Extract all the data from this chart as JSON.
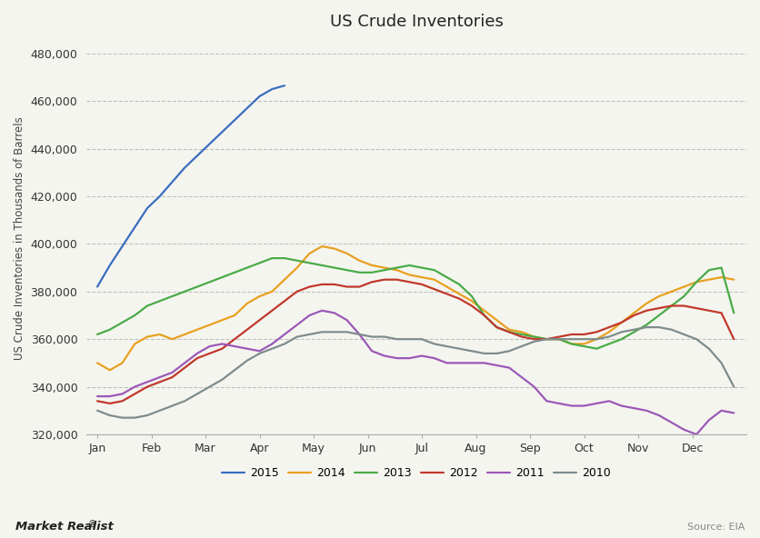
{
  "title": "US Crude Inventories",
  "ylabel": "US Crude Inventories in Thousands of Barrels",
  "source_text": "Source: EIA",
  "watermark": "Market Realist",
  "ylim": [
    320000,
    485000
  ],
  "yticks": [
    320000,
    340000,
    360000,
    380000,
    400000,
    420000,
    440000,
    460000,
    480000
  ],
  "months": [
    "Jan",
    "Feb",
    "Mar",
    "Apr",
    "May",
    "Jun",
    "Jul",
    "Aug",
    "Sep",
    "Oct",
    "Nov",
    "Dec"
  ],
  "series": {
    "2015": {
      "color": "#3a6dbf",
      "x": [
        1,
        2,
        3,
        4,
        5,
        6,
        7,
        8,
        9,
        10,
        11,
        12,
        13,
        14,
        15,
        16
      ],
      "y": [
        382000,
        391000,
        399000,
        407000,
        415000,
        420000,
        426000,
        432000,
        437000,
        442000,
        447000,
        452000,
        457000,
        462000,
        465000,
        466500
      ]
    },
    "2014": {
      "color": "#e8a020",
      "x": [
        1,
        2,
        3,
        4,
        5,
        6,
        7,
        8,
        9,
        10,
        11,
        12,
        13,
        14,
        15,
        16,
        17,
        18,
        19,
        20,
        21,
        22,
        23,
        24,
        25,
        26,
        27,
        28,
        29,
        30,
        31,
        32,
        33,
        34,
        35,
        36,
        37,
        38,
        39,
        40,
        41,
        42,
        43,
        44,
        45,
        46,
        47,
        48,
        49,
        50,
        51,
        52
      ],
      "y": [
        350000,
        347000,
        350000,
        358000,
        361000,
        362000,
        360000,
        362000,
        364000,
        366000,
        368000,
        370000,
        375000,
        378000,
        380000,
        385000,
        390000,
        396000,
        399000,
        398000,
        396000,
        393000,
        391000,
        390000,
        389000,
        387000,
        386000,
        385000,
        382000,
        379000,
        376000,
        372000,
        368000,
        364000,
        363000,
        361000,
        360000,
        360000,
        358000,
        358000,
        360000,
        363000,
        367000,
        371000,
        375000,
        378000,
        380000,
        382000,
        384000,
        385000,
        386000,
        385000
      ]
    },
    "2013": {
      "color": "#4aab48",
      "x": [
        1,
        2,
        3,
        4,
        5,
        6,
        7,
        8,
        9,
        10,
        11,
        12,
        13,
        14,
        15,
        16,
        17,
        18,
        19,
        20,
        21,
        22,
        23,
        24,
        25,
        26,
        27,
        28,
        29,
        30,
        31,
        32,
        33,
        34,
        35,
        36,
        37,
        38,
        39,
        40,
        41,
        42,
        43,
        44,
        45,
        46,
        47,
        48,
        49,
        50,
        51,
        52
      ],
      "y": [
        362000,
        364000,
        367000,
        370000,
        374000,
        376000,
        378000,
        380000,
        382000,
        384000,
        386000,
        388000,
        390000,
        392000,
        394000,
        394000,
        393000,
        392000,
        391000,
        390000,
        389000,
        388000,
        388000,
        389000,
        390000,
        391000,
        390000,
        389000,
        386000,
        383000,
        378000,
        370000,
        365000,
        363000,
        362000,
        361000,
        360000,
        360000,
        358000,
        357000,
        356000,
        358000,
        360000,
        363000,
        366000,
        370000,
        374000,
        378000,
        384000,
        389000,
        390000,
        371000
      ]
    },
    "2012": {
      "color": "#c0392b",
      "x": [
        1,
        2,
        3,
        4,
        5,
        6,
        7,
        8,
        9,
        10,
        11,
        12,
        13,
        14,
        15,
        16,
        17,
        18,
        19,
        20,
        21,
        22,
        23,
        24,
        25,
        26,
        27,
        28,
        29,
        30,
        31,
        32,
        33,
        34,
        35,
        36,
        37,
        38,
        39,
        40,
        41,
        42,
        43,
        44,
        45,
        46,
        47,
        48,
        49,
        50,
        51,
        52
      ],
      "y": [
        334000,
        333000,
        334000,
        337000,
        340000,
        342000,
        344000,
        348000,
        352000,
        354000,
        356000,
        360000,
        364000,
        368000,
        372000,
        376000,
        380000,
        382000,
        383000,
        383000,
        382000,
        382000,
        384000,
        385000,
        385000,
        384000,
        383000,
        381000,
        379000,
        377000,
        374000,
        370000,
        365000,
        363000,
        361000,
        360000,
        360000,
        361000,
        362000,
        362000,
        363000,
        365000,
        367000,
        370000,
        372000,
        373000,
        374000,
        374000,
        373000,
        372000,
        371000,
        360000
      ]
    },
    "2011": {
      "color": "#9b59b6",
      "x": [
        1,
        2,
        3,
        4,
        5,
        6,
        7,
        8,
        9,
        10,
        11,
        12,
        13,
        14,
        15,
        16,
        17,
        18,
        19,
        20,
        21,
        22,
        23,
        24,
        25,
        26,
        27,
        28,
        29,
        30,
        31,
        32,
        33,
        34,
        35,
        36,
        37,
        38,
        39,
        40,
        41,
        42,
        43,
        44,
        45,
        46,
        47,
        48,
        49,
        50,
        51,
        52
      ],
      "y": [
        336000,
        336000,
        337000,
        340000,
        342000,
        344000,
        346000,
        350000,
        354000,
        357000,
        358000,
        357000,
        356000,
        355000,
        358000,
        362000,
        366000,
        370000,
        372000,
        371000,
        368000,
        362000,
        355000,
        353000,
        352000,
        352000,
        353000,
        352000,
        350000,
        350000,
        350000,
        350000,
        349000,
        348000,
        344000,
        340000,
        334000,
        333000,
        332000,
        332000,
        333000,
        334000,
        332000,
        331000,
        330000,
        328000,
        325000,
        322000,
        320000,
        326000,
        330000,
        329000
      ]
    },
    "2010": {
      "color": "#7f8c8d",
      "x": [
        1,
        2,
        3,
        4,
        5,
        6,
        7,
        8,
        9,
        10,
        11,
        12,
        13,
        14,
        15,
        16,
        17,
        18,
        19,
        20,
        21,
        22,
        23,
        24,
        25,
        26,
        27,
        28,
        29,
        30,
        31,
        32,
        33,
        34,
        35,
        36,
        37,
        38,
        39,
        40,
        41,
        42,
        43,
        44,
        45,
        46,
        47,
        48,
        49,
        50,
        51,
        52
      ],
      "y": [
        330000,
        328000,
        327000,
        327000,
        328000,
        330000,
        332000,
        334000,
        337000,
        340000,
        343000,
        347000,
        351000,
        354000,
        356000,
        358000,
        361000,
        362000,
        363000,
        363000,
        363000,
        362000,
        361000,
        361000,
        360000,
        360000,
        360000,
        358000,
        357000,
        356000,
        355000,
        354000,
        354000,
        355000,
        357000,
        359000,
        360000,
        360000,
        360000,
        360000,
        360000,
        361000,
        363000,
        364000,
        365000,
        365000,
        364000,
        362000,
        360000,
        356000,
        350000,
        340000
      ]
    }
  },
  "legend_order": [
    "2015",
    "2014",
    "2013",
    "2012",
    "2011",
    "2010"
  ],
  "bg_color": "#f5f5f0",
  "plot_bg_color": "#f5f5f0",
  "grid_color": "#bbbbbb",
  "title_fontsize": 13,
  "axis_fontsize": 9,
  "legend_fontsize": 9,
  "tick_color": "#888888"
}
